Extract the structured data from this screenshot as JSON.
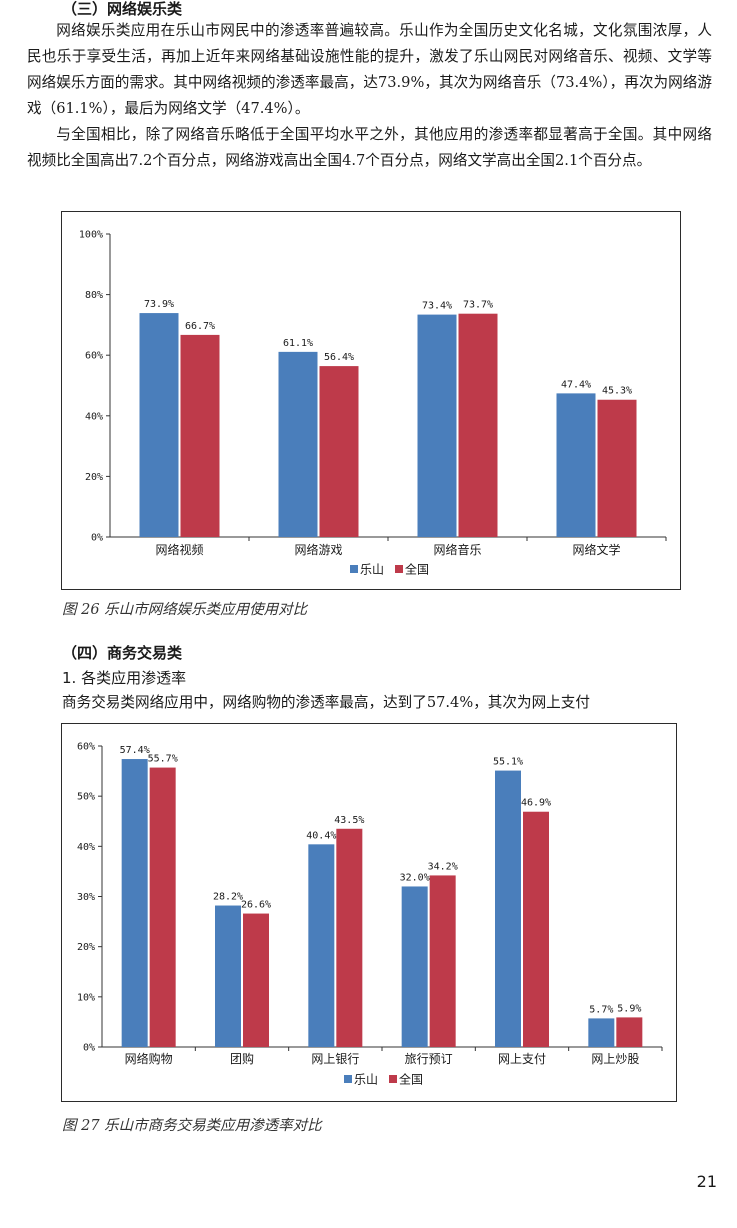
{
  "section3": {
    "heading": "（三）网络娱乐类",
    "para1": "网络娱乐类应用在乐山市网民中的渗透率普遍较高。乐山作为全国历史文化名城，文化氛围浓厚，人民也乐于享受生活，再加上近年来网络基础设施性能的提升，激发了乐山网民对网络音乐、视频、文学等网络娱乐方面的需求。其中网络视频的渗透率最高，达73.9%，其次为网络音乐（73.4%），再次为网络游戏（61.1%），最后为网络文学（47.4%）。",
    "para2": "与全国相比，除了网络音乐略低于全国平均水平之外，其他应用的渗透率都显著高于全国。其中网络视频比全国高出7.2个百分点，网络游戏高出全国4.7个百分点，网络文学高出全国2.1个百分点。"
  },
  "figure26": {
    "caption": "图 26 乐山市网络娱乐类应用使用对比"
  },
  "section4": {
    "heading": "（四）商务交易类",
    "subheading": "1. 各类应用渗透率",
    "para1": "商务交易类网络应用中，网络购物的渗透率最高，达到了57.4%，其次为网上支付"
  },
  "figure27": {
    "caption": "图 27 乐山市商务交易类应用渗透率对比"
  },
  "page_number": "21",
  "colors": {
    "leshan": "#4a7ebb",
    "national": "#be3a4a"
  },
  "chart_data": [
    {
      "type": "bar",
      "categories": [
        "网络视频",
        "网络游戏",
        "网络音乐",
        "网络文学"
      ],
      "series": [
        {
          "name": "乐山",
          "values": [
            73.9,
            61.1,
            73.4,
            47.4
          ],
          "labels": [
            "73.9%",
            "61.1%",
            "73.4%",
            "47.4%"
          ]
        },
        {
          "name": "全国",
          "values": [
            66.7,
            56.4,
            73.7,
            45.3
          ],
          "labels": [
            "66.7%",
            "56.4%",
            "73.7%",
            "45.3%"
          ]
        }
      ],
      "yticks": [
        "0%",
        "20%",
        "40%",
        "60%",
        "80%",
        "100%"
      ],
      "ylim": [
        0,
        100
      ],
      "legend": "bottom"
    },
    {
      "type": "bar",
      "categories": [
        "网络购物",
        "团购",
        "网上银行",
        "旅行预订",
        "网上支付",
        "网上炒股"
      ],
      "series": [
        {
          "name": "乐山",
          "values": [
            57.4,
            28.2,
            40.4,
            32.0,
            55.1,
            5.7
          ],
          "labels": [
            "57.4%",
            "28.2%",
            "40.4%",
            "32.0%",
            "55.1%",
            "5.7%"
          ]
        },
        {
          "name": "全国",
          "values": [
            55.7,
            26.6,
            43.5,
            34.2,
            46.9,
            5.9
          ],
          "labels": [
            "55.7%",
            "26.6%",
            "43.5%",
            "34.2%",
            "46.9%",
            "5.9%"
          ]
        }
      ],
      "yticks": [
        "0%",
        "10%",
        "20%",
        "30%",
        "40%",
        "50%",
        "60%"
      ],
      "ylim": [
        0,
        60
      ],
      "legend": "bottom"
    }
  ]
}
